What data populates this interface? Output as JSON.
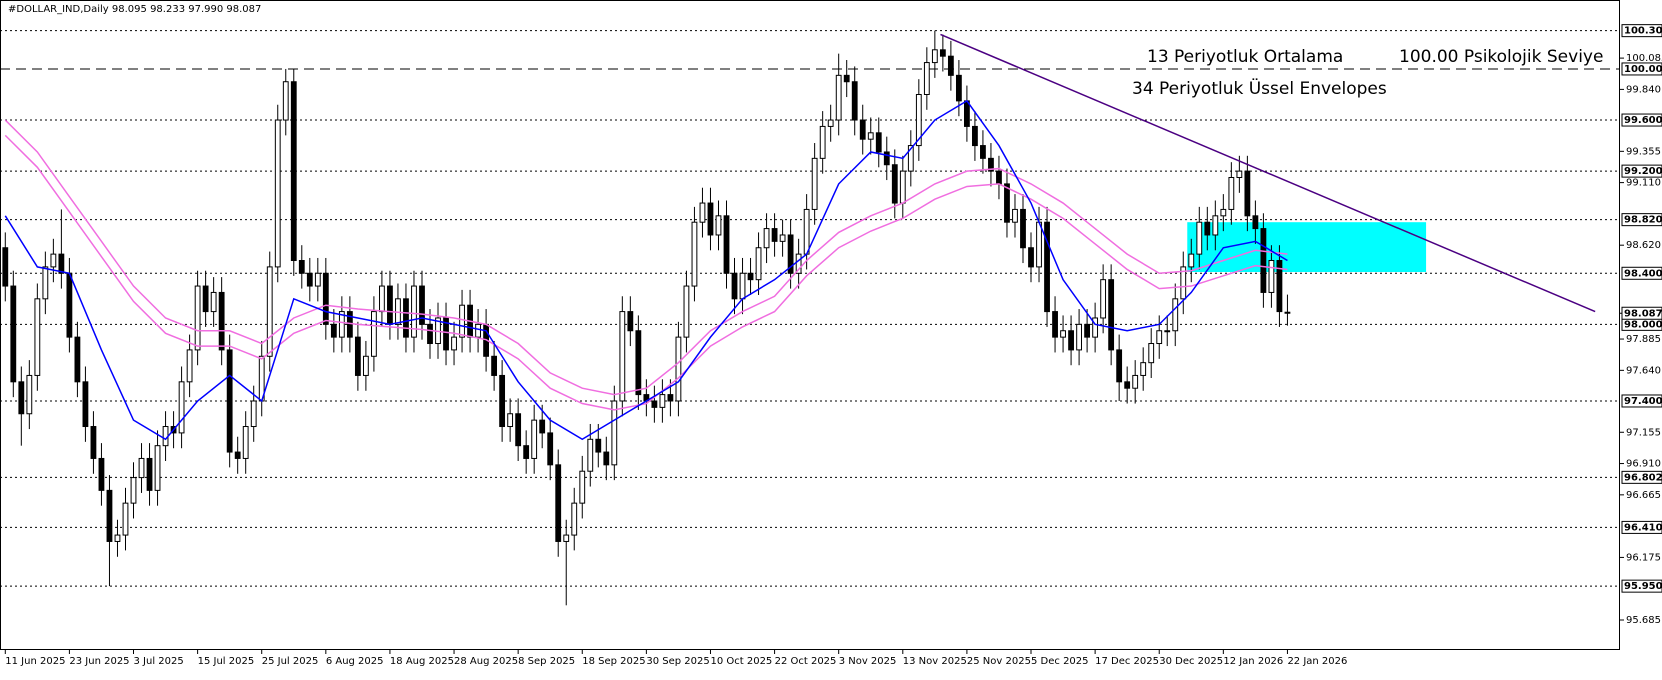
{
  "chart_data": {
    "type": "candlestick",
    "title": "#DOLLAR_IND,Daily  98.095 98.233 97.990 98.087",
    "up_color": "#ffffff",
    "down_color": "#000000",
    "open": [
      98.6,
      98.3,
      97.55,
      97.3,
      97.6,
      98.2,
      98.45,
      98.55,
      98.4,
      97.9,
      97.55,
      97.2,
      96.95,
      96.7,
      96.3,
      96.35,
      96.6,
      96.8,
      96.95,
      96.7,
      97.05,
      97.2,
      97.15,
      97.55,
      97.8,
      98.3,
      98.1,
      98.25,
      97.8,
      97.0,
      96.95,
      97.2,
      97.4,
      97.75,
      98.45,
      99.6,
      99.9,
      98.5,
      98.4,
      98.3,
      98.4,
      98.0,
      97.9,
      98.1,
      97.9,
      97.6,
      97.75,
      98.1,
      98.3,
      98.0,
      98.2,
      97.9,
      98.3,
      98.0,
      97.85,
      98.05,
      97.8,
      97.9,
      98.15,
      97.9,
      98.0,
      97.75,
      97.6,
      97.2,
      97.3,
      97.05,
      96.95,
      97.25,
      97.15,
      96.9,
      96.3,
      96.35,
      96.6,
      96.85,
      97.1,
      97.0,
      96.9,
      97.4,
      98.1,
      97.95,
      97.45,
      97.4,
      97.35,
      97.45,
      97.4,
      97.9,
      98.3,
      98.8,
      98.95,
      98.7,
      98.85,
      98.4,
      98.2,
      98.4,
      98.35,
      98.6,
      98.75,
      98.65,
      98.7,
      98.4,
      98.55,
      98.9,
      99.3,
      99.55,
      99.6,
      99.95,
      99.9,
      99.6,
      99.45,
      99.5,
      99.35,
      99.25,
      98.95,
      99.2,
      99.4,
      99.8,
      100.05,
      100.15,
      100.1,
      99.95,
      99.75,
      99.55,
      99.4,
      99.3,
      99.2,
      99.1,
      98.8,
      98.9,
      98.6,
      98.45,
      98.8,
      98.1,
      97.9,
      97.95,
      97.8,
      98.0,
      97.9,
      98.05,
      98.35,
      97.8,
      97.55,
      97.5,
      97.6,
      97.7,
      97.85,
      97.95,
      97.95,
      98.2,
      98.45,
      98.55,
      98.8,
      98.7,
      98.85,
      98.9,
      99.15,
      99.2,
      98.85,
      98.75,
      98.25,
      98.5,
      98.095
    ],
    "high": [
      98.72,
      98.42,
      97.67,
      97.72,
      98.32,
      98.57,
      98.67,
      98.9,
      98.52,
      98.02,
      97.67,
      97.32,
      97.07,
      96.82,
      96.47,
      96.72,
      96.92,
      97.07,
      97.07,
      97.17,
      97.32,
      97.32,
      97.67,
      97.92,
      98.42,
      98.42,
      98.37,
      98.37,
      97.92,
      97.12,
      97.32,
      97.52,
      97.87,
      98.57,
      99.72,
      100.0,
      100.0,
      98.62,
      98.52,
      98.52,
      98.52,
      98.12,
      98.22,
      98.22,
      98.02,
      97.87,
      98.22,
      98.42,
      98.42,
      98.32,
      98.32,
      98.42,
      98.42,
      98.12,
      98.17,
      98.17,
      98.02,
      98.27,
      98.27,
      98.12,
      98.12,
      97.87,
      97.72,
      97.42,
      97.42,
      97.17,
      97.37,
      97.37,
      97.27,
      97.02,
      96.47,
      96.72,
      96.97,
      97.22,
      97.22,
      97.12,
      97.52,
      98.22,
      98.22,
      98.07,
      97.57,
      97.52,
      97.57,
      97.57,
      98.02,
      98.42,
      98.92,
      99.07,
      99.07,
      98.97,
      98.97,
      98.52,
      98.52,
      98.52,
      98.72,
      98.87,
      98.87,
      98.82,
      98.82,
      98.67,
      99.02,
      99.42,
      99.67,
      99.72,
      100.12,
      100.07,
      100.02,
      99.72,
      99.62,
      99.62,
      99.47,
      99.37,
      99.32,
      99.52,
      99.92,
      100.17,
      100.3,
      100.27,
      100.22,
      100.07,
      99.87,
      99.67,
      99.52,
      99.42,
      99.32,
      99.22,
      99.02,
      99.02,
      98.72,
      98.92,
      98.92,
      98.22,
      98.07,
      98.07,
      98.12,
      98.12,
      98.17,
      98.47,
      98.47,
      97.92,
      97.67,
      97.72,
      97.82,
      97.97,
      98.07,
      98.07,
      98.32,
      98.57,
      98.67,
      98.92,
      98.92,
      98.97,
      99.02,
      99.27,
      99.32,
      99.32,
      98.97,
      98.87,
      98.62,
      98.62,
      98.233
    ],
    "low": [
      98.18,
      97.43,
      97.05,
      97.18,
      97.48,
      98.08,
      98.33,
      98.28,
      97.78,
      97.43,
      97.08,
      96.83,
      96.58,
      95.95,
      96.18,
      96.23,
      96.48,
      96.68,
      96.58,
      96.58,
      96.93,
      97.03,
      97.03,
      97.43,
      97.68,
      97.98,
      97.98,
      97.68,
      96.88,
      96.83,
      96.83,
      97.08,
      97.28,
      97.63,
      98.33,
      99.48,
      98.38,
      98.28,
      98.18,
      98.18,
      97.88,
      97.78,
      97.78,
      97.78,
      97.48,
      97.48,
      97.63,
      97.98,
      97.88,
      97.88,
      97.78,
      97.78,
      97.88,
      97.73,
      97.73,
      97.68,
      97.68,
      97.78,
      97.78,
      97.78,
      97.63,
      97.48,
      97.08,
      97.08,
      96.93,
      96.83,
      96.83,
      97.03,
      96.78,
      96.18,
      95.8,
      96.23,
      96.48,
      96.73,
      96.88,
      96.78,
      96.78,
      97.28,
      97.83,
      97.33,
      97.28,
      97.23,
      97.23,
      97.28,
      97.28,
      97.78,
      98.18,
      98.68,
      98.58,
      98.58,
      98.28,
      98.08,
      98.08,
      98.23,
      98.23,
      98.48,
      98.53,
      98.53,
      98.28,
      98.28,
      98.43,
      98.78,
      99.18,
      99.43,
      99.48,
      99.78,
      99.48,
      99.33,
      99.33,
      99.23,
      99.13,
      98.83,
      98.83,
      99.08,
      99.28,
      99.68,
      99.93,
      99.98,
      99.83,
      99.63,
      99.43,
      99.28,
      99.18,
      99.08,
      98.98,
      98.68,
      98.68,
      98.48,
      98.33,
      98.33,
      97.98,
      97.78,
      97.78,
      97.68,
      97.68,
      97.78,
      97.78,
      97.93,
      97.68,
      97.4,
      97.38,
      97.38,
      97.48,
      97.58,
      97.73,
      97.83,
      97.83,
      98.08,
      98.33,
      98.43,
      98.58,
      98.58,
      98.73,
      98.78,
      99.03,
      98.73,
      98.63,
      98.13,
      98.13,
      97.98,
      97.99
    ],
    "close": [
      98.3,
      97.55,
      97.3,
      97.6,
      98.2,
      98.45,
      98.55,
      98.4,
      97.9,
      97.55,
      97.2,
      96.95,
      96.7,
      96.3,
      96.35,
      96.6,
      96.8,
      96.95,
      96.7,
      97.05,
      97.2,
      97.15,
      97.55,
      97.8,
      98.3,
      98.1,
      98.25,
      97.8,
      97.0,
      96.95,
      97.2,
      97.4,
      97.75,
      98.45,
      99.6,
      99.9,
      98.5,
      98.4,
      98.3,
      98.4,
      98.0,
      97.9,
      98.1,
      97.9,
      97.6,
      97.75,
      98.1,
      98.3,
      98.0,
      98.2,
      97.9,
      98.3,
      98.0,
      97.85,
      98.05,
      97.8,
      97.9,
      98.15,
      97.9,
      98.0,
      97.75,
      97.6,
      97.2,
      97.3,
      97.05,
      96.95,
      97.25,
      97.15,
      96.9,
      96.3,
      96.35,
      96.6,
      96.85,
      97.1,
      97.0,
      96.9,
      97.4,
      98.1,
      97.95,
      97.45,
      97.4,
      97.35,
      97.45,
      97.4,
      97.9,
      98.3,
      98.8,
      98.95,
      98.7,
      98.85,
      98.4,
      98.2,
      98.4,
      98.35,
      98.6,
      98.75,
      98.65,
      98.7,
      98.4,
      98.55,
      98.9,
      99.3,
      99.55,
      99.6,
      99.95,
      99.9,
      99.6,
      99.45,
      99.5,
      99.35,
      99.25,
      98.95,
      99.2,
      99.4,
      99.8,
      100.05,
      100.15,
      100.1,
      99.95,
      99.75,
      99.55,
      99.4,
      99.3,
      99.2,
      99.1,
      98.8,
      98.9,
      98.6,
      98.45,
      98.8,
      98.1,
      97.9,
      97.95,
      97.8,
      98.0,
      97.9,
      98.05,
      98.35,
      97.8,
      97.55,
      97.5,
      97.6,
      97.7,
      97.85,
      97.95,
      97.95,
      98.2,
      98.45,
      98.55,
      98.8,
      98.7,
      98.85,
      98.9,
      99.15,
      99.2,
      98.85,
      98.75,
      98.25,
      98.5,
      98.1,
      98.087
    ],
    "lines": [
      {
        "name": "13 Periyotluk Ortalama",
        "color": "#0000ff",
        "x": [
          0,
          4,
          8,
          12,
          16,
          20,
          24,
          28,
          32,
          36,
          40,
          44,
          48,
          52,
          56,
          60,
          64,
          68,
          72,
          76,
          80,
          84,
          88,
          92,
          96,
          100,
          104,
          108,
          112,
          116,
          120,
          124,
          128,
          132,
          136,
          140,
          144,
          148,
          152,
          156,
          160
        ],
        "values": [
          98.85,
          98.45,
          98.4,
          97.8,
          97.25,
          97.1,
          97.4,
          97.6,
          97.4,
          98.2,
          98.1,
          98.05,
          98.0,
          98.05,
          98.0,
          97.95,
          97.55,
          97.25,
          97.1,
          97.25,
          97.4,
          97.55,
          97.9,
          98.2,
          98.35,
          98.55,
          99.1,
          99.35,
          99.3,
          99.6,
          99.75,
          99.4,
          98.95,
          98.35,
          98.0,
          97.95,
          98.0,
          98.25,
          98.6,
          98.65,
          98.5
        ]
      },
      {
        "name": "34 Periyotluk Üssel Envelopes",
        "color": "#f06ee0",
        "x": [
          0,
          4,
          8,
          12,
          16,
          20,
          24,
          28,
          32,
          36,
          40,
          44,
          48,
          52,
          56,
          60,
          64,
          68,
          72,
          76,
          80,
          84,
          88,
          92,
          96,
          100,
          104,
          108,
          112,
          116,
          120,
          124,
          128,
          132,
          136,
          140,
          144,
          148,
          152,
          156,
          160
        ],
        "upper": [
          99.6,
          99.35,
          99.0,
          98.65,
          98.3,
          98.05,
          97.95,
          97.95,
          97.85,
          98.05,
          98.15,
          98.12,
          98.1,
          98.08,
          98.05,
          98.0,
          97.85,
          97.62,
          97.5,
          97.45,
          97.5,
          97.7,
          97.95,
          98.1,
          98.22,
          98.5,
          98.72,
          98.85,
          98.95,
          99.1,
          99.2,
          99.22,
          99.1,
          98.95,
          98.75,
          98.55,
          98.4,
          98.42,
          98.5,
          98.58,
          98.55
        ],
        "lower": [
          99.48,
          99.23,
          98.88,
          98.53,
          98.18,
          97.93,
          97.83,
          97.83,
          97.73,
          97.93,
          98.03,
          98.0,
          97.98,
          97.96,
          97.93,
          97.88,
          97.73,
          97.5,
          97.38,
          97.33,
          97.38,
          97.58,
          97.83,
          97.98,
          98.1,
          98.38,
          98.6,
          98.73,
          98.83,
          98.98,
          99.08,
          99.1,
          98.98,
          98.83,
          98.63,
          98.43,
          98.28,
          98.3,
          98.38,
          98.46,
          98.43
        ]
      }
    ],
    "trendline": {
      "color": "#4b0082",
      "x": [
        116.7,
        198.4
      ],
      "y": [
        100.27,
        98.1
      ]
    },
    "zone": {
      "color": "#00ffff",
      "x": [
        147.5,
        177.3
      ],
      "y": [
        98.41,
        98.8
      ]
    },
    "annotation": "100.00 Psikolojik Seviye",
    "xlim": [
      -0.66,
      201.5
    ],
    "ylim": [
      95.45,
      100.54
    ],
    "xticks": [
      {
        "value": 0,
        "label": "11 Jun 2025"
      },
      {
        "value": 8,
        "label": "23 Jun 2025"
      },
      {
        "value": 16,
        "label": "3 Jul 2025"
      },
      {
        "value": 24,
        "label": "15 Jul 2025"
      },
      {
        "value": 32,
        "label": "25 Jul 2025"
      },
      {
        "value": 40,
        "label": "6 Aug 2025"
      },
      {
        "value": 48,
        "label": "18 Aug 2025"
      },
      {
        "value": 56,
        "label": "28 Aug 2025"
      },
      {
        "value": 64,
        "label": "8 Sep 2025"
      },
      {
        "value": 72,
        "label": "18 Sep 2025"
      },
      {
        "value": 80,
        "label": "30 Sep 2025"
      },
      {
        "value": 88,
        "label": "10 Oct 2025"
      },
      {
        "value": 96,
        "label": "22 Oct 2025"
      },
      {
        "value": 104,
        "label": "3 Nov 2025"
      },
      {
        "value": 112,
        "label": "13 Nov 2025"
      },
      {
        "value": 120,
        "label": "25 Nov 2025"
      },
      {
        "value": 128,
        "label": "5 Dec 2025"
      },
      {
        "value": 136,
        "label": "17 Dec 2025"
      },
      {
        "value": 144,
        "label": "30 Dec 2025"
      },
      {
        "value": 152,
        "label": "12 Jan 2026"
      },
      {
        "value": 160,
        "label": "22 Jan 2026"
      }
    ],
    "yticks": [
      {
        "value": 100.085,
        "label": "100.085"
      },
      {
        "value": 99.84,
        "label": "99.840"
      },
      {
        "value": 99.355,
        "label": "99.355"
      },
      {
        "value": 99.11,
        "label": "99.110"
      },
      {
        "value": 98.62,
        "label": "98.620"
      },
      {
        "value": 97.885,
        "label": "97.885"
      },
      {
        "value": 97.64,
        "label": "97.640"
      },
      {
        "value": 97.155,
        "label": "97.155"
      },
      {
        "value": 96.91,
        "label": "96.910"
      },
      {
        "value": 96.665,
        "label": "96.665"
      },
      {
        "value": 96.175,
        "label": "96.175"
      },
      {
        "value": 95.685,
        "label": "95.685"
      }
    ],
    "levels": [
      {
        "value": 100.3,
        "label": "100.300"
      },
      {
        "value": 99.6,
        "label": "99.600"
      },
      {
        "value": 99.2,
        "label": "99.200"
      },
      {
        "value": 98.82,
        "label": "98.820"
      },
      {
        "value": 98.4,
        "label": "98.400"
      },
      {
        "value": 98,
        "label": "98.000"
      },
      {
        "value": 97.4,
        "label": "97.400"
      },
      {
        "value": 96.802,
        "label": "96.802"
      },
      {
        "value": 96.41,
        "label": "96.410"
      },
      {
        "value": 95.95,
        "label": "95.950"
      }
    ],
    "key_level": {
      "value": 100,
      "label": "100.000"
    },
    "price": {
      "value": 98.087,
      "label": "98.087"
    }
  }
}
